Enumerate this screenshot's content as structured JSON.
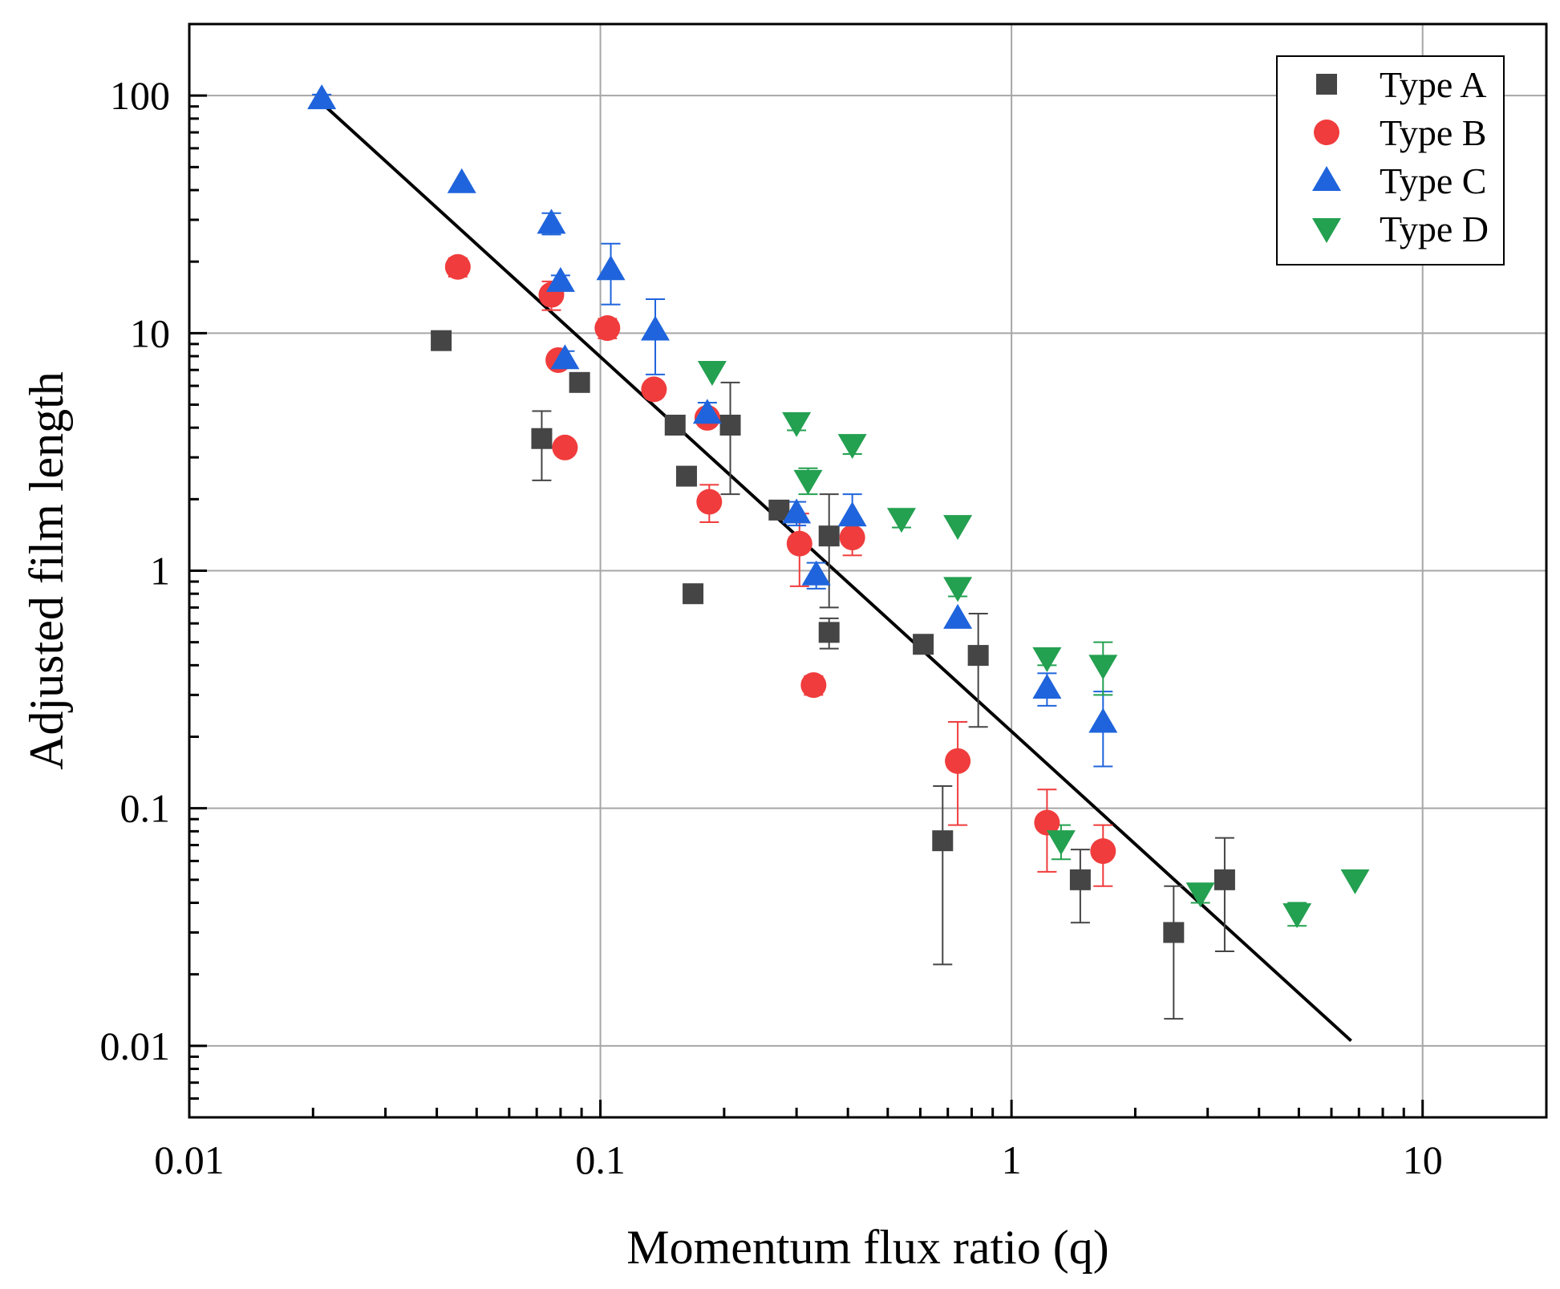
{
  "chart_data": {
    "type": "scatter",
    "xlabel": "Momentum flux ratio (q)",
    "ylabel": "Adjusted film length",
    "xscale": "log",
    "yscale": "log",
    "xlim": [
      0.01,
      20
    ],
    "ylim": [
      0.005,
      200
    ],
    "xticks": [
      0.01,
      0.1,
      1,
      10
    ],
    "xtick_labels": [
      "0.01",
      "0.1",
      "1",
      "10"
    ],
    "yticks": [
      0.01,
      0.1,
      1,
      10,
      100
    ],
    "ytick_labels": [
      "0.01",
      "0.1",
      "1",
      "10",
      "100"
    ],
    "grid": true,
    "legend_position": "top-right",
    "series": [
      {
        "name": "Type A",
        "marker": "square",
        "color": "#454545",
        "points": [
          {
            "x": 0.041,
            "y": 9.3
          },
          {
            "x": 0.072,
            "y": 3.6,
            "ylo": 2.4,
            "yhi": 4.7
          },
          {
            "x": 0.089,
            "y": 6.2
          },
          {
            "x": 0.152,
            "y": 4.1
          },
          {
            "x": 0.162,
            "y": 2.5
          },
          {
            "x": 0.168,
            "y": 0.8
          },
          {
            "x": 0.207,
            "y": 4.1,
            "ylo": 2.1,
            "yhi": 6.2
          },
          {
            "x": 0.272,
            "y": 1.8
          },
          {
            "x": 0.36,
            "y": 1.4,
            "ylo": 0.7,
            "yhi": 2.1
          },
          {
            "x": 0.36,
            "y": 0.55,
            "ylo": 0.47,
            "yhi": 0.63
          },
          {
            "x": 0.61,
            "y": 0.49
          },
          {
            "x": 0.68,
            "y": 0.073,
            "ylo": 0.022,
            "yhi": 0.124
          },
          {
            "x": 0.83,
            "y": 0.44,
            "ylo": 0.22,
            "yhi": 0.66
          },
          {
            "x": 1.47,
            "y": 0.05,
            "ylo": 0.033,
            "yhi": 0.067
          },
          {
            "x": 2.48,
            "y": 0.03,
            "ylo": 0.013,
            "yhi": 0.047
          },
          {
            "x": 3.3,
            "y": 0.05,
            "ylo": 0.025,
            "yhi": 0.075
          }
        ]
      },
      {
        "name": "Type B",
        "marker": "circle",
        "color": "#f03c3c",
        "points": [
          {
            "x": 0.045,
            "y": 19,
            "ylo": 17.3,
            "yhi": 20.7
          },
          {
            "x": 0.076,
            "y": 14.5,
            "ylo": 12.5,
            "yhi": 16.5
          },
          {
            "x": 0.079,
            "y": 7.7
          },
          {
            "x": 0.082,
            "y": 3.3
          },
          {
            "x": 0.104,
            "y": 10.5,
            "ylo": 9.5,
            "yhi": 11.5
          },
          {
            "x": 0.135,
            "y": 5.8
          },
          {
            "x": 0.182,
            "y": 4.4
          },
          {
            "x": 0.184,
            "y": 1.95,
            "ylo": 1.6,
            "yhi": 2.3
          },
          {
            "x": 0.305,
            "y": 1.3,
            "ylo": 0.86,
            "yhi": 1.74
          },
          {
            "x": 0.33,
            "y": 0.33,
            "ylo": 0.3,
            "yhi": 0.36
          },
          {
            "x": 0.41,
            "y": 1.38,
            "ylo": 1.16,
            "yhi": 1.6
          },
          {
            "x": 0.74,
            "y": 0.158,
            "ylo": 0.085,
            "yhi": 0.231
          },
          {
            "x": 1.22,
            "y": 0.087,
            "ylo": 0.054,
            "yhi": 0.12
          },
          {
            "x": 1.67,
            "y": 0.066,
            "ylo": 0.047,
            "yhi": 0.085
          }
        ]
      },
      {
        "name": "Type C",
        "marker": "triangle-up",
        "color": "#1f64dc",
        "points": [
          {
            "x": 0.021,
            "y": 97,
            "ylo": 93,
            "yhi": 101
          },
          {
            "x": 0.046,
            "y": 43
          },
          {
            "x": 0.076,
            "y": 29,
            "ylo": 26,
            "yhi": 32
          },
          {
            "x": 0.08,
            "y": 16.5,
            "ylo": 15.5,
            "yhi": 17.5
          },
          {
            "x": 0.082,
            "y": 7.8,
            "ylo": 7.2,
            "yhi": 8.4
          },
          {
            "x": 0.106,
            "y": 18.5,
            "ylo": 13.2,
            "yhi": 23.8
          },
          {
            "x": 0.136,
            "y": 10.3,
            "ylo": 6.7,
            "yhi": 13.9
          },
          {
            "x": 0.182,
            "y": 4.6,
            "ylo": 4.1,
            "yhi": 5.1
          },
          {
            "x": 0.3,
            "y": 1.75,
            "ylo": 1.55,
            "yhi": 1.95
          },
          {
            "x": 0.335,
            "y": 0.96,
            "ylo": 0.84,
            "yhi": 1.08
          },
          {
            "x": 0.41,
            "y": 1.7,
            "ylo": 1.3,
            "yhi": 2.1
          },
          {
            "x": 0.74,
            "y": 0.63
          },
          {
            "x": 1.22,
            "y": 0.32,
            "ylo": 0.27,
            "yhi": 0.37
          },
          {
            "x": 1.67,
            "y": 0.23,
            "ylo": 0.15,
            "yhi": 0.31
          }
        ]
      },
      {
        "name": "Type D",
        "marker": "triangle-down",
        "color": "#23a050",
        "points": [
          {
            "x": 0.187,
            "y": 6.9
          },
          {
            "x": 0.3,
            "y": 4.2,
            "ylo": 3.9,
            "yhi": 4.5
          },
          {
            "x": 0.32,
            "y": 2.4,
            "ylo": 2.1,
            "yhi": 2.7
          },
          {
            "x": 0.41,
            "y": 3.4,
            "ylo": 3.1,
            "yhi": 3.7
          },
          {
            "x": 0.54,
            "y": 1.66,
            "ylo": 1.52,
            "yhi": 1.8
          },
          {
            "x": 0.74,
            "y": 1.55
          },
          {
            "x": 0.74,
            "y": 0.85,
            "ylo": 0.78,
            "yhi": 0.92
          },
          {
            "x": 1.22,
            "y": 0.43,
            "ylo": 0.4,
            "yhi": 0.46
          },
          {
            "x": 1.67,
            "y": 0.4,
            "ylo": 0.3,
            "yhi": 0.5
          },
          {
            "x": 1.32,
            "y": 0.073,
            "ylo": 0.061,
            "yhi": 0.085
          },
          {
            "x": 2.88,
            "y": 0.044,
            "ylo": 0.04,
            "yhi": 0.048
          },
          {
            "x": 4.95,
            "y": 0.036,
            "ylo": 0.032,
            "yhi": 0.04
          },
          {
            "x": 6.85,
            "y": 0.05
          }
        ]
      }
    ],
    "fit_line": {
      "color": "#000000",
      "points": [
        {
          "x": 0.021,
          "y": 93
        },
        {
          "x": 6.7,
          "y": 0.0105
        }
      ]
    }
  }
}
